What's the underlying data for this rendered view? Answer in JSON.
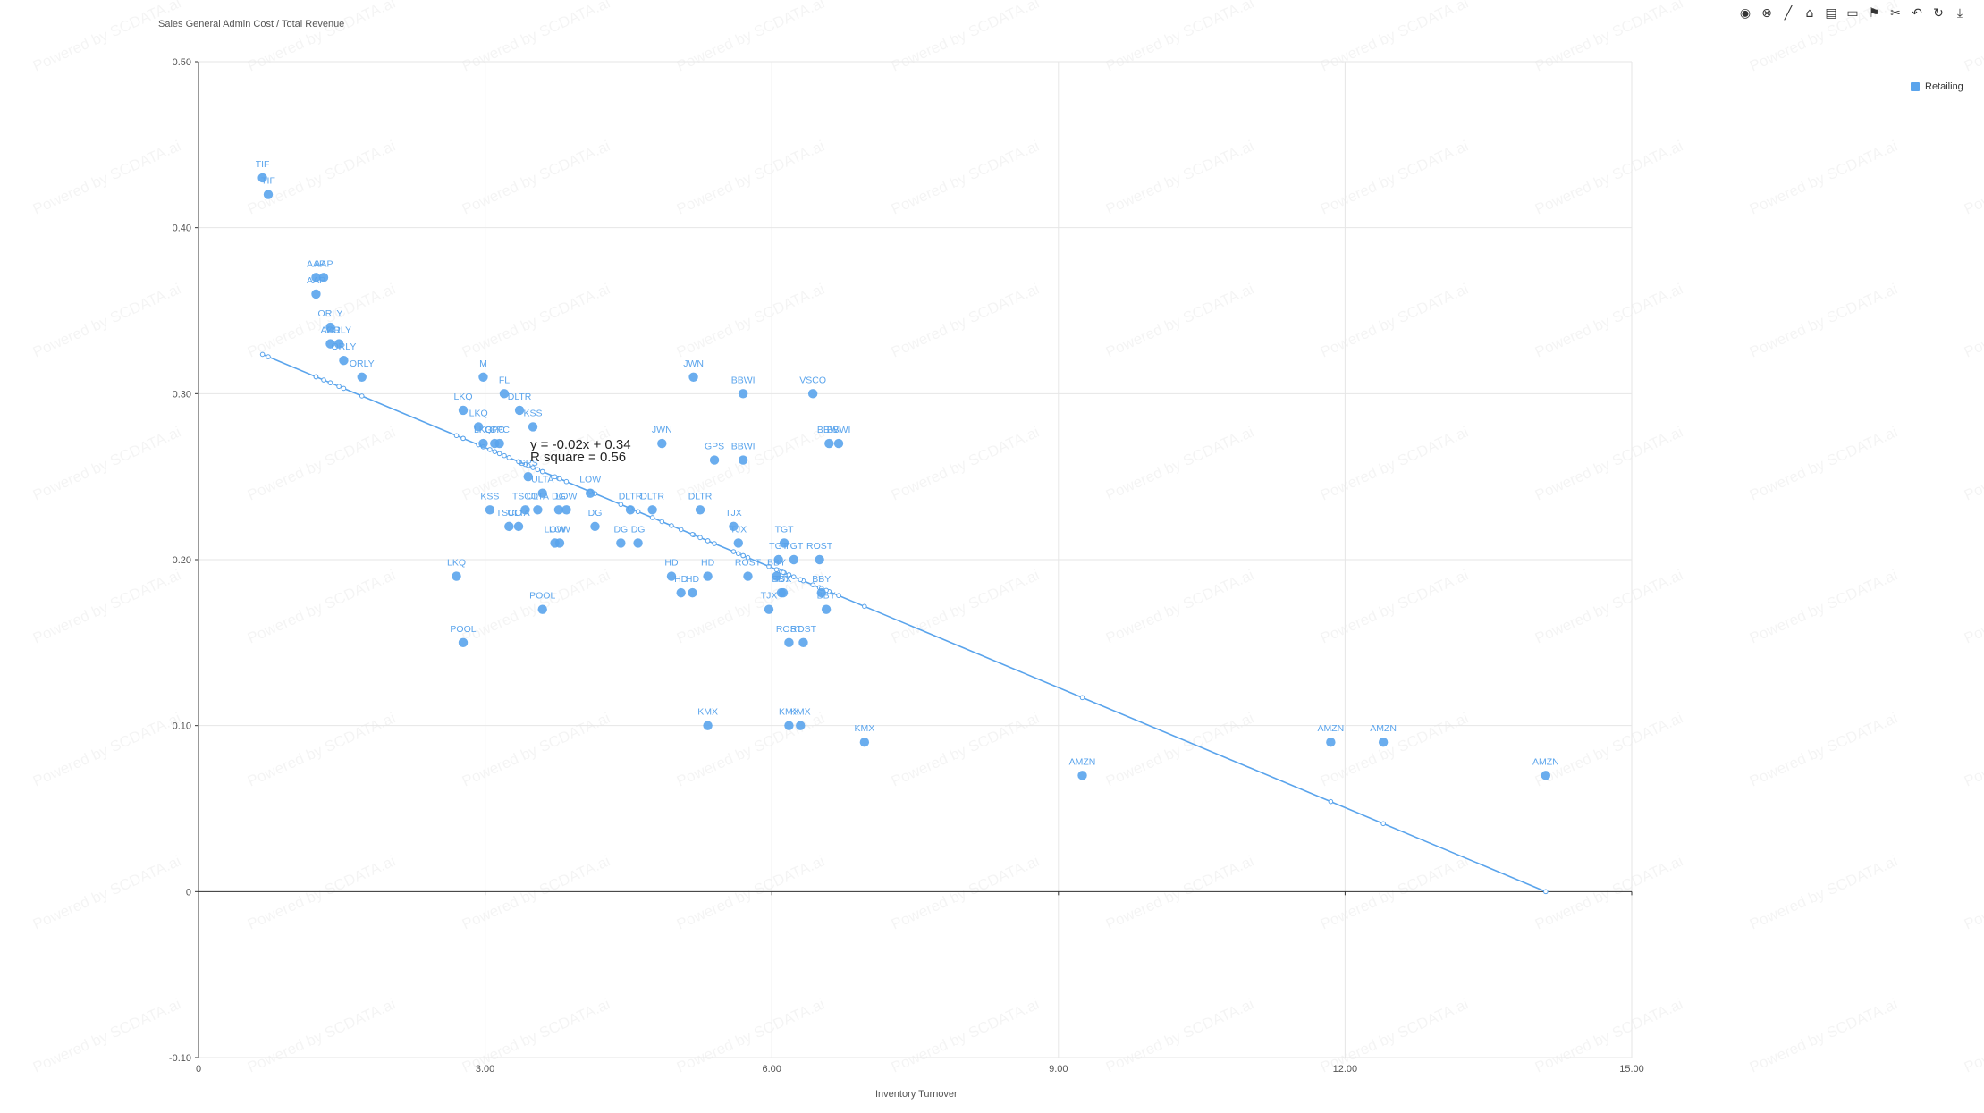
{
  "toolbar": {
    "icons": [
      "record-icon",
      "clear-icon",
      "line-draw-icon",
      "tag-icon",
      "table-icon",
      "comment-icon",
      "flag-icon",
      "cut-icon",
      "undo-icon",
      "refresh-icon",
      "download-icon"
    ]
  },
  "watermark": "Powered by SCDATA.ai",
  "chart_data": {
    "type": "scatter",
    "title": "",
    "ylabel": "Sales General Admin Cost / Total Revenue",
    "xlabel": "Inventory Turnover",
    "xlim": [
      0,
      15
    ],
    "ylim": [
      -0.1,
      0.5
    ],
    "x_ticks": [
      "0",
      "3.00",
      "6.00",
      "9.00",
      "12.00",
      "15.00"
    ],
    "y_ticks": [
      "-0.10",
      "0",
      "0.10",
      "0.20",
      "0.30",
      "0.40",
      "0.50"
    ],
    "grid": true,
    "legend": "top-right",
    "series": [
      {
        "name": "Retailing",
        "color": "#5aa4ec",
        "points": [
          {
            "label": "TIF",
            "x": 0.67,
            "y": 0.43
          },
          {
            "label": "TIF",
            "x": 0.73,
            "y": 0.42
          },
          {
            "label": "AAP",
            "x": 1.23,
            "y": 0.37
          },
          {
            "label": "AAP",
            "x": 1.31,
            "y": 0.37
          },
          {
            "label": "AAP",
            "x": 1.23,
            "y": 0.36
          },
          {
            "label": "ORLY",
            "x": 1.38,
            "y": 0.34
          },
          {
            "label": "AZO",
            "x": 1.38,
            "y": 0.33
          },
          {
            "label": "ORLY",
            "x": 1.47,
            "y": 0.33
          },
          {
            "label": "ORLY",
            "x": 1.52,
            "y": 0.32
          },
          {
            "label": "ORLY",
            "x": 1.71,
            "y": 0.31
          },
          {
            "label": "M",
            "x": 2.98,
            "y": 0.31
          },
          {
            "label": "FL",
            "x": 3.2,
            "y": 0.3
          },
          {
            "label": "LKQ",
            "x": 2.77,
            "y": 0.29
          },
          {
            "label": "DLTR",
            "x": 3.36,
            "y": 0.29
          },
          {
            "label": "LKQ",
            "x": 2.93,
            "y": 0.28
          },
          {
            "label": "KSS",
            "x": 3.5,
            "y": 0.28
          },
          {
            "label": "LKQ",
            "x": 2.98,
            "y": 0.27
          },
          {
            "label": "GPC",
            "x": 3.1,
            "y": 0.27
          },
          {
            "label": "GPC",
            "x": 3.15,
            "y": 0.27
          },
          {
            "label": "GPS",
            "x": 3.45,
            "y": 0.25
          },
          {
            "label": "ULTA",
            "x": 3.6,
            "y": 0.24
          },
          {
            "label": "LOW",
            "x": 4.1,
            "y": 0.24
          },
          {
            "label": "LOW",
            "x": 3.85,
            "y": 0.23
          },
          {
            "label": "KSS",
            "x": 3.05,
            "y": 0.23
          },
          {
            "label": "TSCO",
            "x": 3.42,
            "y": 0.23
          },
          {
            "label": "ULTA",
            "x": 3.55,
            "y": 0.23
          },
          {
            "label": "TSCO",
            "x": 3.25,
            "y": 0.22
          },
          {
            "label": "ULTA",
            "x": 3.35,
            "y": 0.22
          },
          {
            "label": "DG",
            "x": 3.77,
            "y": 0.23
          },
          {
            "label": "DG",
            "x": 4.15,
            "y": 0.22
          },
          {
            "label": "LOW",
            "x": 3.73,
            "y": 0.21
          },
          {
            "label": "LOW",
            "x": 3.78,
            "y": 0.21
          },
          {
            "label": "DG",
            "x": 4.42,
            "y": 0.21
          },
          {
            "label": "DG",
            "x": 4.6,
            "y": 0.21
          },
          {
            "label": "DLTR",
            "x": 4.52,
            "y": 0.23
          },
          {
            "label": "DLTR",
            "x": 4.75,
            "y": 0.23
          },
          {
            "label": "DLTR",
            "x": 5.25,
            "y": 0.23
          },
          {
            "label": "LKQ",
            "x": 2.7,
            "y": 0.19
          },
          {
            "label": "POOL",
            "x": 3.6,
            "y": 0.17
          },
          {
            "label": "POOL",
            "x": 2.77,
            "y": 0.15
          },
          {
            "label": "JWN",
            "x": 5.18,
            "y": 0.31
          },
          {
            "label": "JWN",
            "x": 4.85,
            "y": 0.27
          },
          {
            "label": "BBWI",
            "x": 5.7,
            "y": 0.3
          },
          {
            "label": "BBWI",
            "x": 5.7,
            "y": 0.26
          },
          {
            "label": "GPS",
            "x": 5.4,
            "y": 0.26
          },
          {
            "label": "VSCO",
            "x": 6.43,
            "y": 0.3
          },
          {
            "label": "BBWI",
            "x": 6.6,
            "y": 0.27
          },
          {
            "label": "BBWI",
            "x": 6.7,
            "y": 0.27
          },
          {
            "label": "HD",
            "x": 4.95,
            "y": 0.19
          },
          {
            "label": "HD",
            "x": 5.33,
            "y": 0.19
          },
          {
            "label": "HD",
            "x": 5.05,
            "y": 0.18
          },
          {
            "label": "HD",
            "x": 5.17,
            "y": 0.18
          },
          {
            "label": "TJX",
            "x": 5.6,
            "y": 0.22
          },
          {
            "label": "TJX",
            "x": 5.65,
            "y": 0.21
          },
          {
            "label": "TGT",
            "x": 6.13,
            "y": 0.21
          },
          {
            "label": "TGT",
            "x": 6.07,
            "y": 0.2
          },
          {
            "label": "TGT",
            "x": 6.23,
            "y": 0.2
          },
          {
            "label": "ROST",
            "x": 6.5,
            "y": 0.2
          },
          {
            "label": "ROST",
            "x": 5.75,
            "y": 0.19
          },
          {
            "label": "BBY",
            "x": 6.05,
            "y": 0.19
          },
          {
            "label": "BBY",
            "x": 6.1,
            "y": 0.18
          },
          {
            "label": "BBY",
            "x": 6.52,
            "y": 0.18
          },
          {
            "label": "TJX",
            "x": 6.12,
            "y": 0.18
          },
          {
            "label": "TJX",
            "x": 5.97,
            "y": 0.17
          },
          {
            "label": "BBY",
            "x": 6.57,
            "y": 0.17
          },
          {
            "label": "ROST",
            "x": 6.18,
            "y": 0.15
          },
          {
            "label": "ROST",
            "x": 6.33,
            "y": 0.15
          },
          {
            "label": "KMX",
            "x": 5.33,
            "y": 0.1
          },
          {
            "label": "KMX",
            "x": 6.18,
            "y": 0.1
          },
          {
            "label": "KMX",
            "x": 6.3,
            "y": 0.1
          },
          {
            "label": "KMX",
            "x": 6.97,
            "y": 0.09
          },
          {
            "label": "AMZN",
            "x": 9.25,
            "y": 0.07
          },
          {
            "label": "AMZN",
            "x": 11.85,
            "y": 0.09
          },
          {
            "label": "AMZN",
            "x": 12.4,
            "y": 0.09
          },
          {
            "label": "AMZN",
            "x": 14.1,
            "y": 0.07
          }
        ]
      }
    ],
    "trendline": {
      "equation": "y = -0.02x + 0.34",
      "r_square": "R square = 0.56",
      "slope": -0.0241,
      "intercept": 0.3398,
      "x_from": 0.67,
      "x_to": 14.1
    }
  }
}
